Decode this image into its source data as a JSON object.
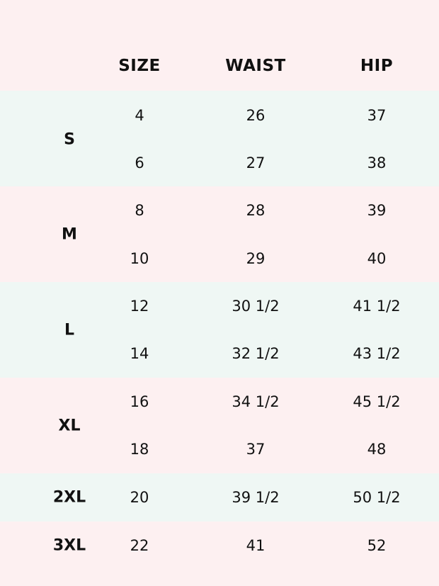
{
  "colors": {
    "pink": "#fdf0f1",
    "mint": "#eff7f4",
    "text": "#111111"
  },
  "headers": {
    "size": "SIZE",
    "waist": "WAIST",
    "hip": "HIP"
  },
  "groups": [
    {
      "label": "S",
      "rows": [
        {
          "size": "4",
          "waist": "26",
          "hip": "37"
        },
        {
          "size": "6",
          "waist": "27",
          "hip": "38"
        }
      ]
    },
    {
      "label": "M",
      "rows": [
        {
          "size": "8",
          "waist": "28",
          "hip": "39"
        },
        {
          "size": "10",
          "waist": "29",
          "hip": "40"
        }
      ]
    },
    {
      "label": "L",
      "rows": [
        {
          "size": "12",
          "waist": "30 1/2",
          "hip": "41 1/2"
        },
        {
          "size": "14",
          "waist": "32 1/2",
          "hip": "43 1/2"
        }
      ]
    },
    {
      "label": "XL",
      "rows": [
        {
          "size": "16",
          "waist": "34 1/2",
          "hip": "45 1/2"
        },
        {
          "size": "18",
          "waist": "37",
          "hip": "48"
        }
      ]
    },
    {
      "label": "2XL",
      "rows": [
        {
          "size": "20",
          "waist": "39 1/2",
          "hip": "50 1/2"
        }
      ]
    },
    {
      "label": "3XL",
      "rows": [
        {
          "size": "22",
          "waist": "41",
          "hip": "52"
        }
      ]
    }
  ]
}
